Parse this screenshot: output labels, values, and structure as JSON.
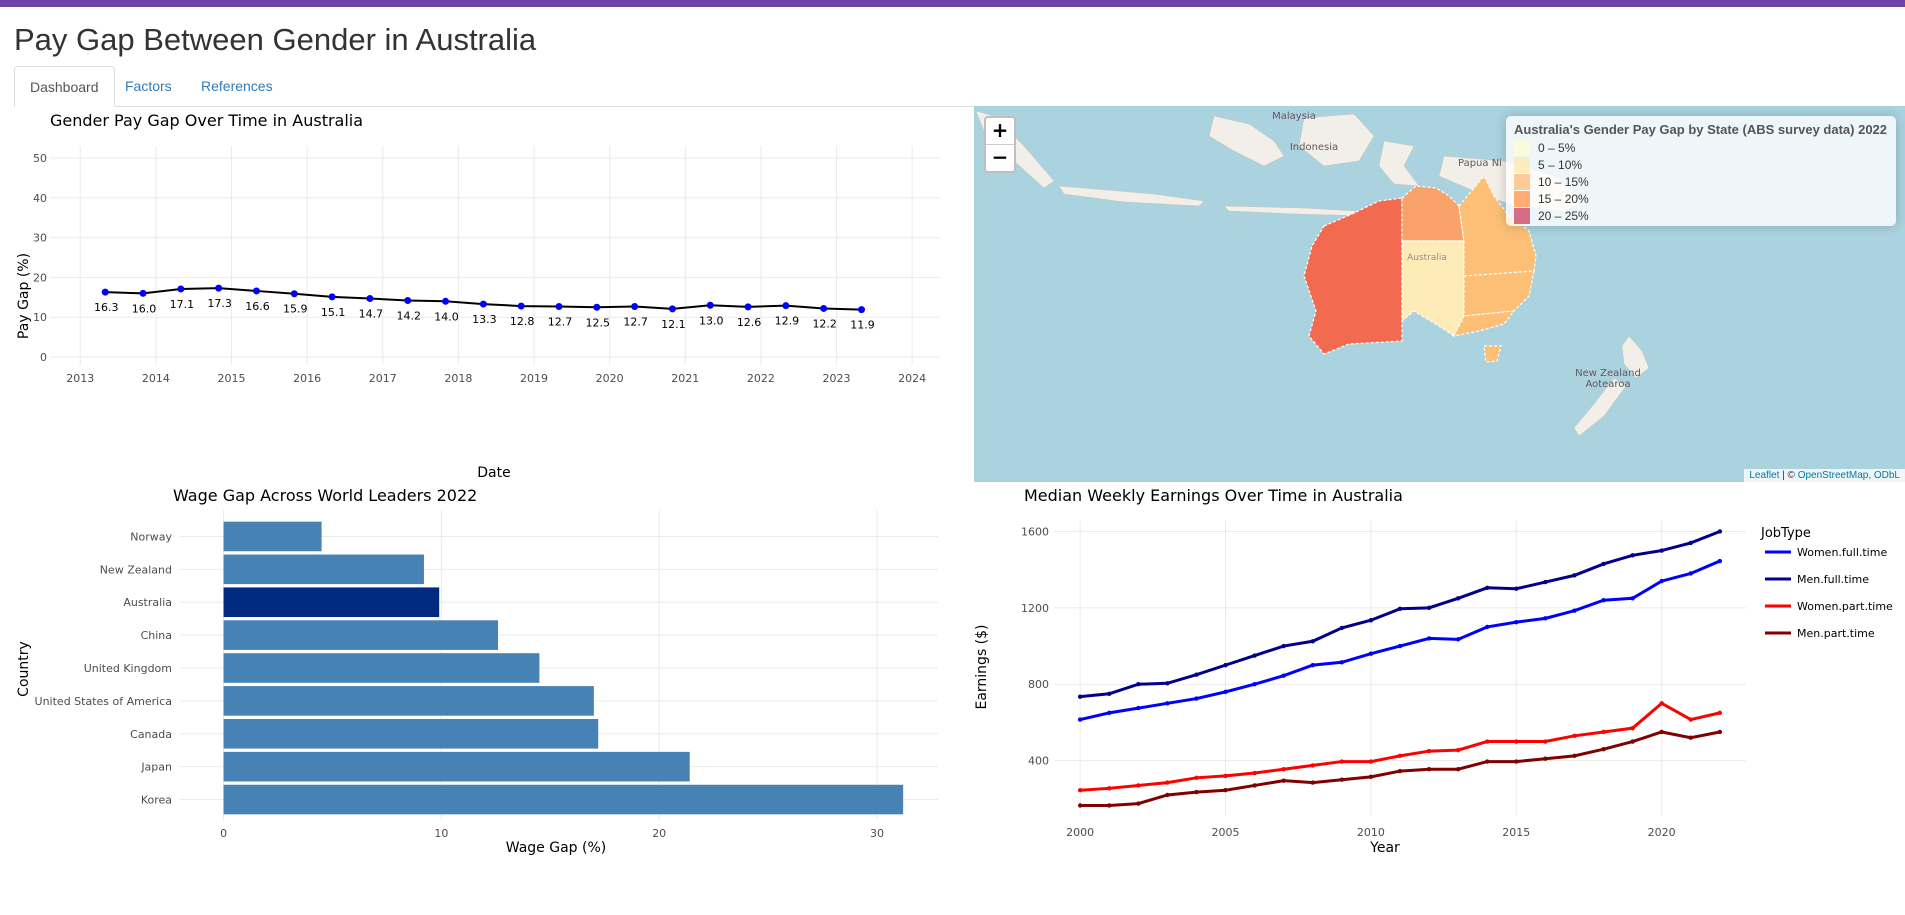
{
  "page_title": "Pay Gap Between Gender in Australia",
  "tabs": [
    {
      "label": "Dashboard",
      "active": true
    },
    {
      "label": "Factors",
      "active": false
    },
    {
      "label": "References",
      "active": false
    }
  ],
  "colors": {
    "accent": "#6f42a6",
    "link": "#337ab7"
  },
  "map": {
    "zoom_in": "+",
    "zoom_out": "−",
    "legend_title": "Australia's Gender Pay Gap by State (ABS survey data) 2022",
    "legend_items": [
      {
        "label": "0 – 5%",
        "color": "#ffffcc"
      },
      {
        "label": "5 – 10%",
        "color": "#fee8a5"
      },
      {
        "label": "10 – 15%",
        "color": "#fdb56a"
      },
      {
        "label": "15 – 20%",
        "color": "#fd8d3c"
      },
      {
        "label": "20 – 25%",
        "color": "#cc3355"
      }
    ],
    "labels": [
      "Malaysia",
      "Indonesia",
      "Papua Ni",
      "Australia",
      "New Zealand",
      "Aotearoa"
    ],
    "attribution_leaflet": "Leaflet",
    "attribution_sep": " | © ",
    "attribution_osm": "OpenStreetMap, ODbL"
  },
  "chart_data": [
    {
      "type": "line",
      "title": "Gender Pay Gap Over Time in Australia",
      "xlabel": "Date",
      "ylabel": "Pay Gap (%)",
      "xlim": [
        2012.6,
        2024.5
      ],
      "ylim": [
        -2,
        53
      ],
      "xticks": [
        2013,
        2014,
        2015,
        2016,
        2017,
        2018,
        2019,
        2020,
        2021,
        2022,
        2023,
        2024
      ],
      "yticks": [
        0,
        10,
        20,
        30,
        40,
        50
      ],
      "x": [
        2013.33,
        2013.83,
        2014.33,
        2014.83,
        2015.33,
        2015.83,
        2016.33,
        2016.83,
        2017.33,
        2017.83,
        2018.33,
        2018.83,
        2019.33,
        2019.83,
        2020.33,
        2020.83,
        2021.33,
        2021.83,
        2022.33,
        2022.83,
        2023.33
      ],
      "values": [
        16.3,
        16.0,
        17.1,
        17.3,
        16.6,
        15.9,
        15.1,
        14.7,
        14.2,
        14.0,
        13.3,
        12.8,
        12.7,
        12.5,
        12.7,
        12.1,
        13.0,
        12.6,
        12.9,
        12.2,
        11.9
      ],
      "labels": [
        "16.3",
        "16.0",
        "17.1",
        "17.3",
        "16.6",
        "15.9",
        "15.1",
        "14.7",
        "14.2",
        "14.0",
        "13.3",
        "12.8",
        "12.7",
        "12.5",
        "12.7",
        "12.1",
        "13.0",
        "12.6",
        "12.9",
        "12.2",
        "11.9"
      ],
      "line_color": "#000000",
      "point_color": "#0000ff"
    },
    {
      "type": "bar",
      "orientation": "horizontal",
      "title": "Wage Gap Across World Leaders 2022",
      "xlabel": "Wage Gap (%)",
      "ylabel": "Country",
      "xlim": [
        -2,
        32.8
      ],
      "xticks": [
        0,
        10,
        20,
        30
      ],
      "categories": [
        "Norway",
        "New Zealand",
        "Australia",
        "China",
        "United Kingdom",
        "United States of America",
        "Canada",
        "Japan",
        "Korea"
      ],
      "values": [
        4.5,
        9.2,
        9.9,
        12.6,
        14.5,
        17.0,
        17.2,
        21.4,
        31.2
      ],
      "bar_color": "#4682b4",
      "highlight_color": "#002a7f",
      "highlight": "Australia"
    },
    {
      "type": "line",
      "title": "Median Weekly Earnings Over Time in Australia",
      "xlabel": "Year",
      "ylabel": "Earnings ($)",
      "xlim": [
        1999.1,
        2022.9
      ],
      "ylim": [
        110,
        1660
      ],
      "xticks": [
        2000,
        2005,
        2010,
        2015,
        2020
      ],
      "yticks": [
        400,
        800,
        1200,
        1600
      ],
      "legend_title": "JobType",
      "legend_position": "right",
      "x": [
        2000,
        2001,
        2002,
        2003,
        2004,
        2005,
        2006,
        2007,
        2008,
        2009,
        2010,
        2011,
        2012,
        2013,
        2014,
        2015,
        2016,
        2017,
        2018,
        2019,
        2020,
        2021,
        2022
      ],
      "series": [
        {
          "name": "Women.full.time",
          "color": "#0000ff",
          "values": [
            615,
            650,
            675,
            700,
            725,
            760,
            800,
            845,
            900,
            915,
            960,
            1000,
            1040,
            1035,
            1100,
            1125,
            1145,
            1185,
            1240,
            1250,
            1340,
            1380,
            1445
          ]
        },
        {
          "name": "Men.full.time",
          "color": "#00008b",
          "values": [
            735,
            750,
            800,
            805,
            850,
            900,
            950,
            1000,
            1025,
            1095,
            1135,
            1195,
            1200,
            1250,
            1305,
            1300,
            1335,
            1370,
            1430,
            1475,
            1500,
            1540,
            1600
          ]
        },
        {
          "name": "Women.part.time",
          "color": "#ff0000",
          "values": [
            245,
            255,
            270,
            285,
            310,
            320,
            335,
            355,
            375,
            395,
            395,
            425,
            450,
            455,
            500,
            500,
            500,
            530,
            550,
            570,
            700,
            615,
            650
          ]
        },
        {
          "name": "Men.part.time",
          "color": "#800000",
          "values": [
            165,
            165,
            175,
            220,
            235,
            245,
            270,
            295,
            285,
            300,
            315,
            345,
            355,
            355,
            395,
            395,
            410,
            425,
            460,
            500,
            550,
            520,
            550
          ]
        }
      ]
    }
  ]
}
